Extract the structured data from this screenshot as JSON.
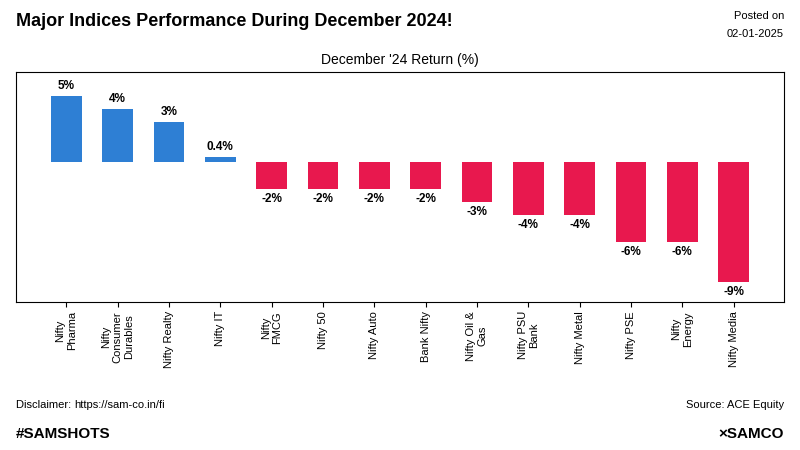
{
  "chart_data": {
    "type": "bar",
    "title": "Major Indices Performance During December 2024!",
    "subtitle": "December '24 Return (%)",
    "annotations": [
      "Posted on",
      "02-01-2025",
      "Source: ACE Equity",
      "Disclaimer: ",
      "https://sam-co.in/fi",
      "#SAMSHOTS",
      "×SAMCO"
    ],
    "categories": [
      "Nifty\nPharma",
      "Nifty\nConsumer\nDurables",
      "Nifty Realty",
      "Nifty IT",
      "Nifty\nFMCG",
      "Nifty 50",
      "Nifty Auto",
      "Bank Nifty",
      "Nifty Oil &\nGas",
      "Nifty PSU\nBank",
      "Nifty Metal",
      "Nifty PSE",
      "Nifty\nEnergy",
      "Nifty Media"
    ],
    "values": [
      5,
      4,
      3,
      0.4,
      -2,
      -2,
      -2,
      -2,
      -3,
      -4,
      -4,
      -6,
      -6,
      -9
    ],
    "value_labels": [
      "5%",
      "4%",
      "3%",
      "0.4%",
      "-2%",
      "-2%",
      "-2%",
      "-2%",
      "-3%",
      "-4%",
      "-4%",
      "-6%",
      "-6%",
      "-9%"
    ],
    "colors": [
      "#2e7fd4",
      "#2e7fd4",
      "#2e7fd4",
      "#2e7fd4",
      "#e8184e",
      "#e8184e",
      "#e8184e",
      "#e8184e",
      "#e8184e",
      "#e8184e",
      "#e8184e",
      "#e8184e",
      "#e8184e",
      "#e8184e"
    ],
    "ylim": [
      -10.5,
      6.8
    ],
    "data_labels": true,
    "tick_labels": "x",
    "grid": false
  }
}
